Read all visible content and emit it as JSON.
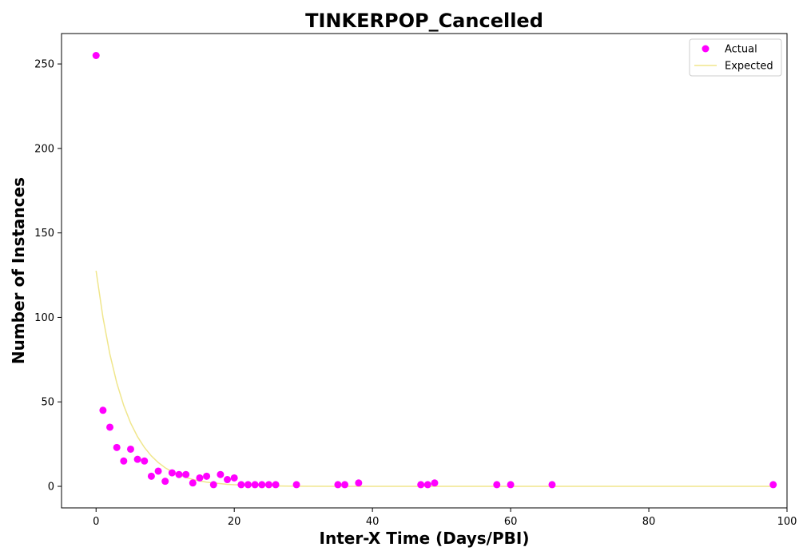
{
  "chart_data": {
    "type": "scatter",
    "title": "TINKERPOP_Cancelled",
    "xlabel": "Inter-X Time (Days/PBI)",
    "ylabel": "Number of Instances",
    "xlim": [
      -5,
      100
    ],
    "ylim": [
      -12.75,
      268
    ],
    "x_ticks": [
      0,
      20,
      40,
      60,
      80,
      100
    ],
    "y_ticks": [
      0,
      50,
      100,
      150,
      200,
      250
    ],
    "grid": false,
    "legend_position": "top-right",
    "series": [
      {
        "name": "Actual",
        "kind": "scatter",
        "color": "#ff00ff",
        "points": [
          [
            0,
            255
          ],
          [
            1,
            45
          ],
          [
            2,
            35
          ],
          [
            3,
            23
          ],
          [
            4,
            15
          ],
          [
            5,
            22
          ],
          [
            6,
            16
          ],
          [
            7,
            15
          ],
          [
            8,
            6
          ],
          [
            9,
            9
          ],
          [
            10,
            3
          ],
          [
            11,
            8
          ],
          [
            12,
            7
          ],
          [
            13,
            7
          ],
          [
            14,
            2
          ],
          [
            15,
            5
          ],
          [
            16,
            6
          ],
          [
            17,
            1
          ],
          [
            18,
            7
          ],
          [
            19,
            4
          ],
          [
            20,
            5
          ],
          [
            21,
            1
          ],
          [
            22,
            1
          ],
          [
            23,
            1
          ],
          [
            24,
            1
          ],
          [
            25,
            1
          ],
          [
            26,
            1
          ],
          [
            29,
            1
          ],
          [
            35,
            1
          ],
          [
            36,
            1
          ],
          [
            38,
            2
          ],
          [
            47,
            1
          ],
          [
            48,
            1
          ],
          [
            49,
            2
          ],
          [
            58,
            1
          ],
          [
            60,
            1
          ],
          [
            66,
            1
          ],
          [
            98,
            1
          ]
        ]
      },
      {
        "name": "Expected",
        "kind": "line",
        "color": "#f0e68c",
        "points": [
          [
            0,
            127.6
          ],
          [
            1,
            99.9
          ],
          [
            2,
            78.2
          ],
          [
            3,
            61.2
          ],
          [
            4,
            47.9
          ],
          [
            5,
            37.5
          ],
          [
            6,
            29.4
          ],
          [
            7,
            23.0
          ],
          [
            8,
            18.0
          ],
          [
            9,
            14.1
          ],
          [
            10,
            11.0
          ],
          [
            11,
            8.6
          ],
          [
            12,
            6.8
          ],
          [
            13,
            5.3
          ],
          [
            14,
            4.1
          ],
          [
            15,
            3.2
          ],
          [
            16,
            2.5
          ],
          [
            17,
            2.0
          ],
          [
            18,
            1.6
          ],
          [
            19,
            1.2
          ],
          [
            20,
            0.96
          ],
          [
            22,
            0.59
          ],
          [
            24,
            0.36
          ],
          [
            26,
            0.22
          ],
          [
            28,
            0.13
          ],
          [
            30,
            0.08
          ],
          [
            35,
            0.02
          ],
          [
            40,
            0.0
          ],
          [
            50,
            0.0
          ],
          [
            60,
            0.0
          ],
          [
            70,
            0.0
          ],
          [
            80,
            0.0
          ],
          [
            90,
            0.0
          ],
          [
            98,
            0.0
          ]
        ]
      }
    ]
  }
}
